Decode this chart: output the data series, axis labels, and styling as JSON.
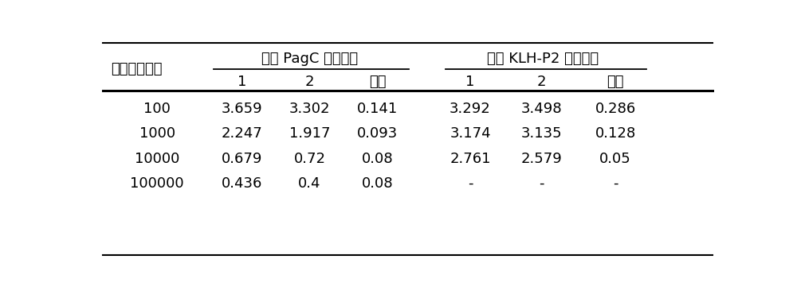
{
  "header_row1_left": "免疫 PagC 小鼠编号",
  "header_row1_right": "免疫 KLH-P2 小鼠编号",
  "row_label_header": "血清稀释倍数",
  "subheader": [
    "1",
    "2",
    "阴性",
    "1",
    "2",
    "阴性"
  ],
  "row_labels": [
    "100",
    "1000",
    "10000",
    "100000"
  ],
  "data": [
    [
      "3.659",
      "3.302",
      "0.141",
      "3.292",
      "3.498",
      "0.286"
    ],
    [
      "2.247",
      "1.917",
      "0.093",
      "3.174",
      "3.135",
      "0.128"
    ],
    [
      "0.679",
      "0.72",
      "0.08",
      "2.761",
      "2.579",
      "0.05"
    ],
    [
      "0.436",
      "0.4",
      "0.08",
      "-",
      "-",
      "-"
    ]
  ],
  "bg_color": "#ffffff",
  "text_color": "#000000",
  "font_size": 13,
  "figsize": [
    10.0,
    3.7
  ]
}
